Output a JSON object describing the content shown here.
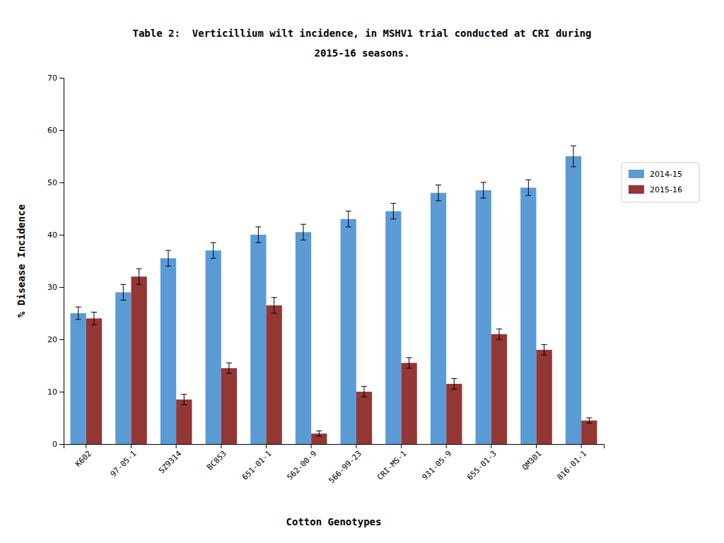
{
  "chart_data": {
    "type": "bar",
    "title": "Table 2:  Verticillium wilt incidence, in MSHV1 trial conducted at CRI during",
    "subtitle": "2015-16 seasons.",
    "xlabel": "Cotton Genotypes",
    "ylabel": "% Disease Incidence",
    "categories": [
      "K602",
      "97-05-1",
      "SZ9314",
      "BC853",
      "651-01-1",
      "562-00-9",
      "566-99-23",
      "CRI-MS-1",
      "931-05-9",
      "655-01-3",
      "QM301",
      "816-01-1"
    ],
    "series": [
      {
        "name": "2014-15",
        "color": "#5B9BD5",
        "values": [
          25.0,
          29.0,
          35.5,
          37.0,
          40.0,
          40.5,
          43.0,
          44.5,
          48.0,
          48.5,
          49.0,
          55.0
        ],
        "errors": [
          1.2,
          1.5,
          1.5,
          1.5,
          1.5,
          1.5,
          1.5,
          1.5,
          1.5,
          1.5,
          1.5,
          2.0
        ]
      },
      {
        "name": "2015-16",
        "color": "#943634",
        "values": [
          24.0,
          32.0,
          8.5,
          14.5,
          26.5,
          2.0,
          10.0,
          15.5,
          11.5,
          21.0,
          18.0,
          4.5
        ],
        "errors": [
          1.2,
          1.5,
          1.0,
          1.0,
          1.5,
          0.5,
          1.0,
          1.0,
          1.0,
          1.0,
          1.0,
          0.5
        ]
      }
    ],
    "ylim": [
      0,
      70
    ],
    "yticks": [
      0,
      10,
      20,
      30,
      40,
      50,
      60,
      70
    ],
    "grid": false,
    "legend": "right"
  }
}
